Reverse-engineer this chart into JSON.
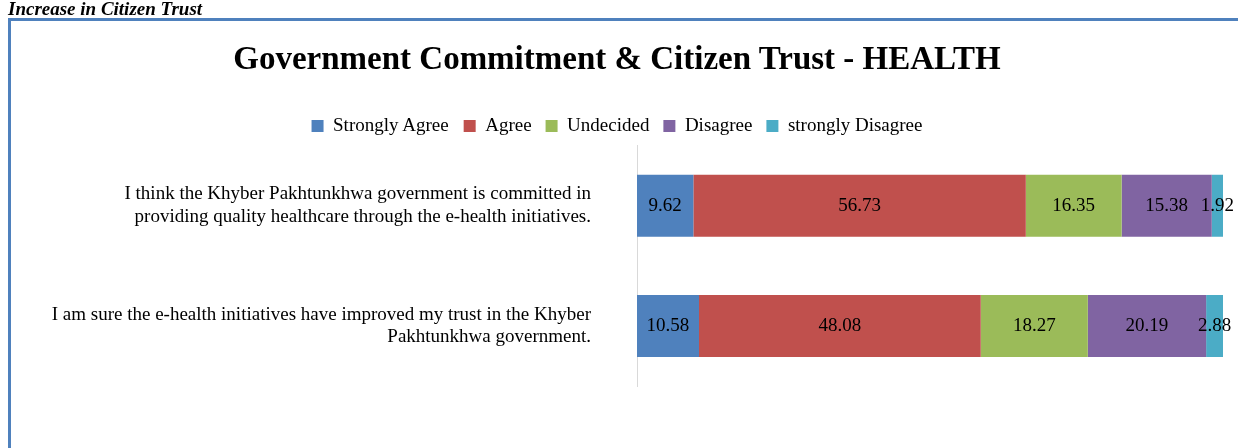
{
  "chart_data": {
    "type": "bar",
    "orientation": "horizontal",
    "stacked": true,
    "title": "Government Commitment & Citizen Trust - HEALTH",
    "annotations": [
      "Increase in Citizen Trust"
    ],
    "categories": [
      "I think the Khyber Pakhtunkhwa government is committed in providing quality healthcare through the e-health initiatives.",
      "I am sure the e-health initiatives have improved my trust in the Khyber Pakhtunkhwa government."
    ],
    "series": [
      {
        "name": "Strongly Agree",
        "color": "#4f81bd",
        "values": [
          9.62,
          10.58
        ]
      },
      {
        "name": "Agree",
        "color": "#c0504d",
        "values": [
          56.73,
          48.08
        ]
      },
      {
        "name": "Undecided",
        "color": "#9bbb59",
        "values": [
          16.35,
          18.27
        ]
      },
      {
        "name": "Disagree",
        "color": "#8064a2",
        "values": [
          15.38,
          20.19
        ]
      },
      {
        "name": "strongly Disagree",
        "color": "#4bacc6",
        "values": [
          1.92,
          2.88
        ]
      }
    ],
    "data_labels": true,
    "legend": "top"
  }
}
